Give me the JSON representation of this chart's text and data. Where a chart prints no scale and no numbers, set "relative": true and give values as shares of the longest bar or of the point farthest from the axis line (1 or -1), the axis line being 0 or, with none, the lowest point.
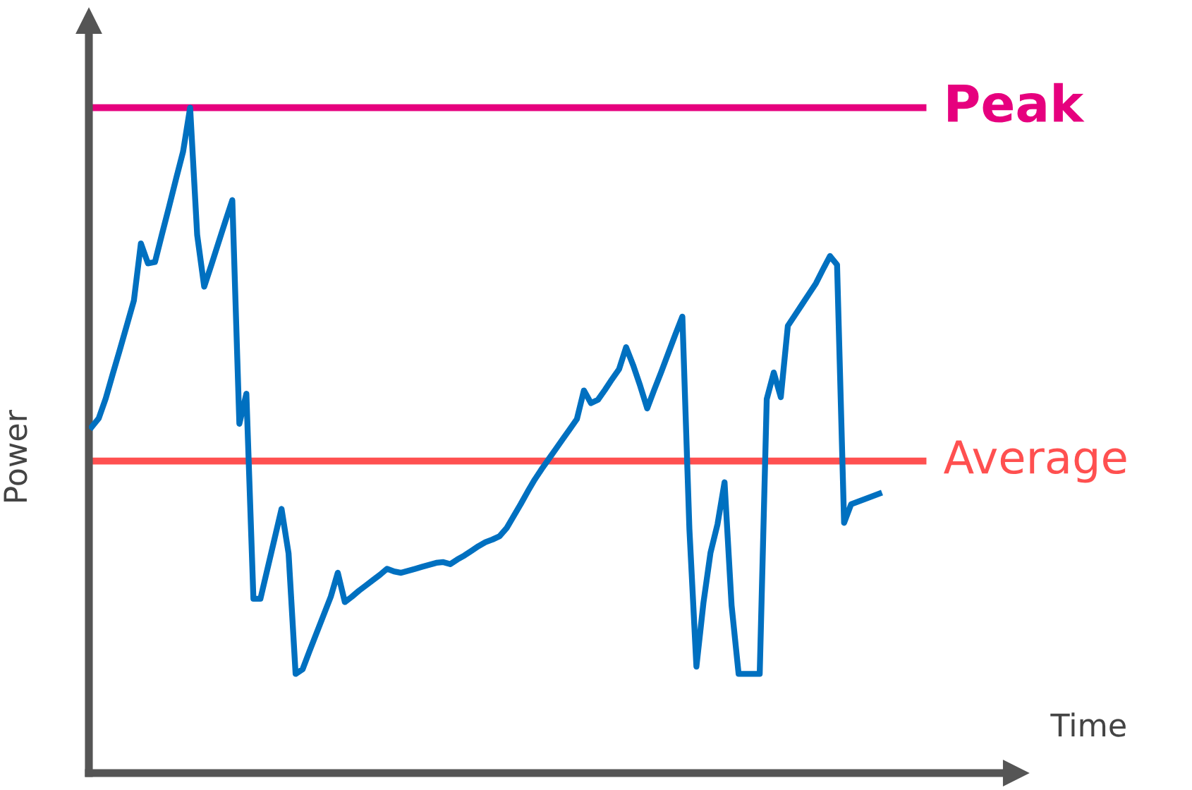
{
  "chart_data": {
    "type": "line",
    "relative": true,
    "annotations": [
      "Time"
    ],
    "ylabel": "Power",
    "marker": "none",
    "line_style": "solid",
    "categories": [
      null,
      null,
      null,
      null,
      null,
      null,
      null,
      null,
      null,
      null,
      null,
      null,
      null,
      null,
      null,
      null,
      null,
      null,
      null,
      null,
      null,
      null,
      null,
      null,
      null,
      null,
      null,
      null,
      null,
      null,
      null,
      null,
      null,
      null,
      null,
      null,
      null,
      null,
      null,
      null,
      null,
      null,
      null,
      null,
      null,
      null,
      null,
      null,
      null,
      null,
      null,
      null,
      null,
      null,
      null,
      null,
      null,
      null,
      null,
      null,
      null,
      null,
      null,
      null,
      null,
      null,
      null,
      null,
      null,
      null,
      null,
      null,
      null,
      null,
      null,
      null,
      null,
      null,
      null,
      null,
      null,
      null,
      null,
      null,
      null,
      null,
      null,
      null,
      null,
      null,
      null,
      null,
      null,
      null,
      null,
      null,
      null,
      null,
      null,
      null,
      null,
      null,
      null,
      null,
      null,
      null,
      null,
      null,
      null,
      null,
      null,
      null,
      null
    ],
    "series": [
      {
        "color": "#0070c0",
        "values": [
          0.52,
          0.533,
          0.563,
          0.6,
          0.636,
          0.673,
          0.71,
          0.796,
          0.766,
          0.768,
          0.81,
          0.851,
          0.893,
          0.934,
          1.0,
          0.809,
          0.731,
          0.763,
          0.796,
          0.829,
          0.861,
          0.525,
          0.57,
          0.262,
          0.262,
          0.307,
          0.352,
          0.397,
          0.33,
          0.149,
          0.156,
          0.184,
          0.211,
          0.238,
          0.265,
          0.301,
          0.257,
          0.265,
          0.274,
          0.282,
          0.29,
          0.298,
          0.307,
          0.303,
          0.301,
          0.304,
          0.307,
          0.31,
          0.313,
          0.316,
          0.317,
          0.314,
          0.321,
          0.327,
          0.334,
          0.341,
          0.347,
          0.351,
          0.356,
          0.368,
          0.386,
          0.404,
          0.423,
          0.441,
          0.457,
          0.472,
          0.487,
          0.502,
          0.517,
          0.532,
          0.575,
          0.556,
          0.561,
          0.576,
          0.592,
          0.607,
          0.64,
          0.613,
          0.582,
          0.548,
          0.576,
          0.603,
          0.631,
          0.659,
          0.686,
          0.367,
          0.16,
          0.256,
          0.331,
          0.374,
          0.437,
          0.252,
          0.149,
          0.149,
          0.149,
          0.149,
          0.562,
          0.602,
          0.565,
          0.672,
          0.688,
          0.704,
          0.72,
          0.736,
          0.757,
          0.777,
          0.764,
          0.376,
          0.404,
          0.408,
          0.412,
          0.416,
          0.42
        ]
      }
    ],
    "ref_lines": [
      {
        "axis": "y",
        "value": 1.0,
        "label": "Peak",
        "color": "#e6007e",
        "line_style": "solid"
      },
      {
        "axis": "y",
        "value": 0.469,
        "label": "Average",
        "color": "#ff5050",
        "line_style": "solid"
      }
    ]
  }
}
